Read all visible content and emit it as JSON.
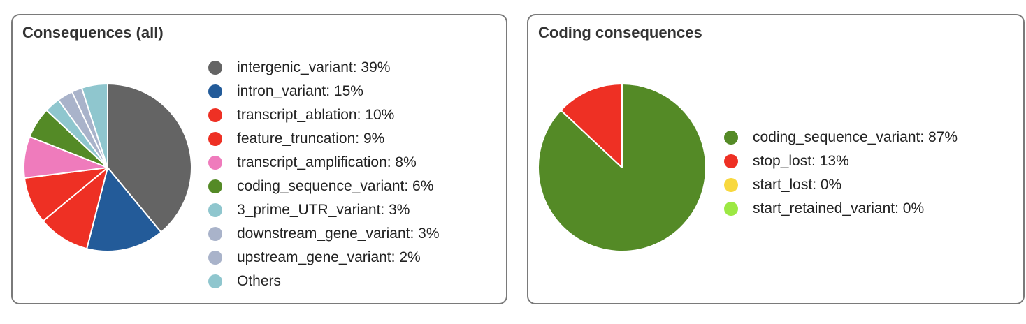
{
  "chart_data": [
    {
      "type": "pie",
      "title": "Consequences (all)",
      "slices": [
        {
          "label": "intergenic_variant: 39%",
          "value": 39,
          "color": "#646464"
        },
        {
          "label": "intron_variant: 15%",
          "value": 15,
          "color": "#235b99"
        },
        {
          "label": "transcript_ablation: 10%",
          "value": 10,
          "color": "#ee3024"
        },
        {
          "label": "feature_truncation: 9%",
          "value": 9,
          "color": "#ee3024"
        },
        {
          "label": "transcript_amplification: 8%",
          "value": 8,
          "color": "#ef7bbc"
        },
        {
          "label": "coding_sequence_variant: 6%",
          "value": 6,
          "color": "#548a26"
        },
        {
          "label": "3_prime_UTR_variant: 3%",
          "value": 3,
          "color": "#8fc6ce"
        },
        {
          "label": "downstream_gene_variant: 3%",
          "value": 3,
          "color": "#a9b3ca"
        },
        {
          "label": "upstream_gene_variant: 2%",
          "value": 2,
          "color": "#a9b3ca"
        },
        {
          "label": "Others",
          "value": 5,
          "color": "#8fc6ce"
        }
      ],
      "legend_position": "right"
    },
    {
      "type": "pie",
      "title": "Coding consequences",
      "slices": [
        {
          "label": "coding_sequence_variant: 87%",
          "value": 87,
          "color": "#548a26"
        },
        {
          "label": "stop_lost: 13%",
          "value": 13,
          "color": "#ee3024"
        },
        {
          "label": "start_lost: 0%",
          "value": 0,
          "color": "#f8d83e"
        },
        {
          "label": "start_retained_variant: 0%",
          "value": 0,
          "color": "#9ce843"
        }
      ],
      "legend_position": "right"
    }
  ]
}
